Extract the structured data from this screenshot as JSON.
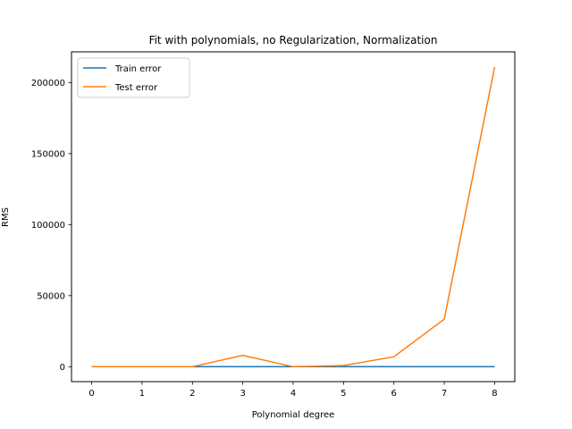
{
  "chart_data": {
    "type": "line",
    "title": "Fit with polynomials, no Regularization, Normalization",
    "xlabel": "Polynomial degree",
    "ylabel": "RMS",
    "x": [
      0,
      1,
      2,
      3,
      4,
      5,
      6,
      7,
      8
    ],
    "xlim": [
      -0.4,
      8.4
    ],
    "ylim": [
      -10500,
      221600
    ],
    "xticks": [
      0,
      1,
      2,
      3,
      4,
      5,
      6,
      7,
      8
    ],
    "yticks": [
      0,
      50000,
      100000,
      150000,
      200000
    ],
    "grid": false,
    "legend_position": "top-left",
    "series": [
      {
        "name": "Train error",
        "color": "#1f77b4",
        "values": [
          0,
          0,
          0,
          0,
          0,
          0,
          0,
          0,
          0
        ]
      },
      {
        "name": "Test error",
        "color": "#ff7f0e",
        "values": [
          0,
          0,
          0,
          8000,
          0,
          800,
          7000,
          33500,
          211000
        ]
      }
    ]
  }
}
